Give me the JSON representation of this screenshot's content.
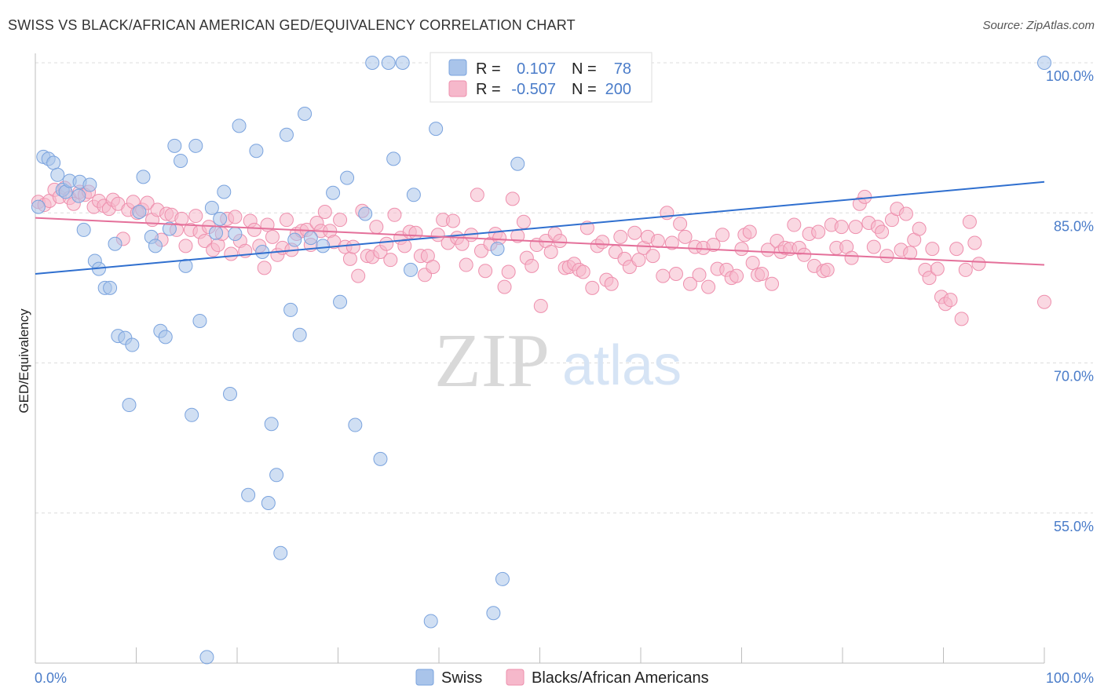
{
  "title": "SWISS VS BLACK/AFRICAN AMERICAN GED/EQUIVALENCY CORRELATION CHART",
  "source": "Source: ZipAtlas.com",
  "watermark": {
    "zip": "ZIP",
    "atlas": "atlas"
  },
  "colors": {
    "swiss": "#a9c4ea",
    "swiss_stroke": "#7aa3de",
    "swiss_line": "#2f6fcf",
    "black": "#f6b8cb",
    "black_stroke": "#ee8fad",
    "black_line": "#e4709a",
    "accent_text": "#4a7cc9",
    "grid": "#dcdcdc"
  },
  "legend_box": {
    "rows": [
      {
        "r_label": "R =",
        "r_value": "0.107",
        "n_label": "N =",
        "n_value": "78"
      },
      {
        "r_label": "R =",
        "r_value": "-0.507",
        "n_label": "N =",
        "n_value": "200"
      }
    ]
  },
  "bottom_legend": [
    "Swiss",
    "Blacks/African Americans"
  ],
  "chart_data": {
    "type": "scatter",
    "title": "SWISS VS BLACK/AFRICAN AMERICAN GED/EQUIVALENCY CORRELATION CHART",
    "xlabel": "",
    "ylabel": "GED/Equivalency",
    "xlim": [
      0,
      100
    ],
    "ylim": [
      40,
      100
    ],
    "x_tick_labels": [
      "0.0%",
      "100.0%"
    ],
    "y_ticks": [
      55,
      70,
      85,
      100
    ],
    "y_tick_labels": [
      "55.0%",
      "70.0%",
      "85.0%",
      "100.0%"
    ],
    "grid": true,
    "legend_position": "top-center",
    "series": [
      {
        "name": "Swiss",
        "r": 0.107,
        "n": 78,
        "trend": [
          [
            0,
            78.9
          ],
          [
            100,
            88.1
          ]
        ],
        "points": [
          [
            0.3,
            85.6
          ],
          [
            0.8,
            90.6
          ],
          [
            1.3,
            90.4
          ],
          [
            1.8,
            90.0
          ],
          [
            2.2,
            88.8
          ],
          [
            2.7,
            87.3
          ],
          [
            3.0,
            87.1
          ],
          [
            3.4,
            88.2
          ],
          [
            4.3,
            86.7
          ],
          [
            4.4,
            88.1
          ],
          [
            5.4,
            87.8
          ],
          [
            4.8,
            83.3
          ],
          [
            5.9,
            80.2
          ],
          [
            6.3,
            79.4
          ],
          [
            6.9,
            77.5
          ],
          [
            7.4,
            77.5
          ],
          [
            7.9,
            81.9
          ],
          [
            8.2,
            72.7
          ],
          [
            8.9,
            72.5
          ],
          [
            9.6,
            71.8
          ],
          [
            9.3,
            65.8
          ],
          [
            10.3,
            85.1
          ],
          [
            10.7,
            88.6
          ],
          [
            11.5,
            82.6
          ],
          [
            11.9,
            81.7
          ],
          [
            12.4,
            73.2
          ],
          [
            12.9,
            72.6
          ],
          [
            13.3,
            83.4
          ],
          [
            13.8,
            91.7
          ],
          [
            14.4,
            90.2
          ],
          [
            14.9,
            79.7
          ],
          [
            15.5,
            64.8
          ],
          [
            15.9,
            91.7
          ],
          [
            16.3,
            74.2
          ],
          [
            17.0,
            40.6
          ],
          [
            17.5,
            85.5
          ],
          [
            17.9,
            83.0
          ],
          [
            18.3,
            84.4
          ],
          [
            18.7,
            87.1
          ],
          [
            19.3,
            66.9
          ],
          [
            19.8,
            82.9
          ],
          [
            20.2,
            93.7
          ],
          [
            21.1,
            56.8
          ],
          [
            21.9,
            91.2
          ],
          [
            22.5,
            81.1
          ],
          [
            23.1,
            56.0
          ],
          [
            23.4,
            63.9
          ],
          [
            23.9,
            58.8
          ],
          [
            24.3,
            51.0
          ],
          [
            24.9,
            92.8
          ],
          [
            25.3,
            75.3
          ],
          [
            25.7,
            82.3
          ],
          [
            26.2,
            72.8
          ],
          [
            26.7,
            94.9
          ],
          [
            27.3,
            82.5
          ],
          [
            28.5,
            81.7
          ],
          [
            29.5,
            87.0
          ],
          [
            30.2,
            76.1
          ],
          [
            30.9,
            88.5
          ],
          [
            31.7,
            63.8
          ],
          [
            32.7,
            84.9
          ],
          [
            33.4,
            100
          ],
          [
            34.2,
            60.4
          ],
          [
            35.0,
            100
          ],
          [
            35.5,
            90.4
          ],
          [
            36.4,
            100
          ],
          [
            37.2,
            79.3
          ],
          [
            37.5,
            86.8
          ],
          [
            39.2,
            44.2
          ],
          [
            39.7,
            93.4
          ],
          [
            41.2,
            100
          ],
          [
            41.8,
            100
          ],
          [
            45.4,
            45.0
          ],
          [
            45.8,
            81.4
          ],
          [
            46.3,
            48.4
          ],
          [
            47.0,
            100
          ],
          [
            47.8,
            89.9
          ],
          [
            100,
            100
          ]
        ]
      },
      {
        "name": "Blacks/African Americans",
        "r": -0.507,
        "n": 200,
        "trend": [
          [
            0,
            84.5
          ],
          [
            100,
            79.8
          ]
        ],
        "points": [
          [
            0.3,
            86.1
          ],
          [
            0.9,
            85.8
          ],
          [
            1.4,
            86.2
          ],
          [
            1.9,
            87.3
          ],
          [
            2.4,
            86.6
          ],
          [
            2.9,
            87.5
          ],
          [
            3.4,
            86.5
          ],
          [
            3.8,
            85.9
          ],
          [
            4.4,
            87.1
          ],
          [
            4.9,
            86.8
          ],
          [
            5.3,
            87.1
          ],
          [
            5.8,
            85.6
          ],
          [
            6.3,
            86.2
          ],
          [
            6.8,
            85.7
          ],
          [
            7.3,
            85.4
          ],
          [
            7.7,
            86.3
          ],
          [
            8.2,
            85.9
          ],
          [
            8.7,
            82.4
          ],
          [
            9.2,
            85.3
          ],
          [
            9.7,
            86.1
          ],
          [
            10.1,
            85.0
          ],
          [
            10.6,
            85.3
          ],
          [
            11.1,
            86.0
          ],
          [
            11.6,
            84.3
          ],
          [
            12.1,
            85.3
          ],
          [
            12.5,
            82.3
          ],
          [
            13.0,
            84.9
          ],
          [
            13.5,
            84.8
          ],
          [
            14.0,
            83.3
          ],
          [
            14.5,
            84.4
          ],
          [
            14.9,
            81.7
          ],
          [
            15.4,
            83.3
          ],
          [
            15.9,
            84.7
          ],
          [
            16.3,
            83.1
          ],
          [
            16.8,
            82.2
          ],
          [
            17.2,
            83.6
          ],
          [
            17.6,
            81.3
          ],
          [
            18.1,
            81.8
          ],
          [
            18.5,
            82.9
          ],
          [
            19.0,
            84.4
          ],
          [
            19.4,
            80.9
          ],
          [
            19.8,
            84.6
          ],
          [
            20.3,
            82.2
          ],
          [
            20.8,
            81.2
          ],
          [
            21.3,
            84.2
          ],
          [
            21.7,
            83.3
          ],
          [
            22.2,
            81.7
          ],
          [
            22.7,
            79.5
          ],
          [
            23.0,
            83.8
          ],
          [
            23.5,
            82.6
          ],
          [
            24.0,
            80.8
          ],
          [
            24.5,
            81.5
          ],
          [
            24.9,
            84.3
          ],
          [
            25.4,
            81.3
          ],
          [
            25.9,
            82.9
          ],
          [
            26.4,
            83.2
          ],
          [
            26.9,
            83.3
          ],
          [
            27.3,
            81.8
          ],
          [
            27.9,
            84.0
          ],
          [
            28.3,
            83.2
          ],
          [
            28.7,
            85.1
          ],
          [
            29.2,
            83.2
          ],
          [
            29.6,
            82.1
          ],
          [
            30.2,
            84.3
          ],
          [
            30.7,
            81.6
          ],
          [
            31.2,
            80.4
          ],
          [
            31.5,
            81.6
          ],
          [
            32.0,
            78.7
          ],
          [
            32.4,
            85.2
          ],
          [
            32.9,
            80.7
          ],
          [
            33.4,
            80.6
          ],
          [
            33.8,
            83.6
          ],
          [
            34.2,
            81.1
          ],
          [
            34.8,
            81.9
          ],
          [
            35.2,
            80.3
          ],
          [
            35.6,
            84.8
          ],
          [
            36.2,
            82.5
          ],
          [
            36.6,
            81.7
          ],
          [
            37.1,
            83.1
          ],
          [
            37.7,
            83.0
          ],
          [
            38.2,
            80.7
          ],
          [
            38.6,
            78.8
          ],
          [
            38.9,
            80.7
          ],
          [
            39.4,
            79.6
          ],
          [
            39.9,
            82.8
          ],
          [
            40.4,
            84.3
          ],
          [
            40.9,
            82.0
          ],
          [
            41.4,
            84.2
          ],
          [
            41.8,
            82.5
          ],
          [
            42.3,
            81.9
          ],
          [
            42.7,
            79.8
          ],
          [
            43.2,
            82.8
          ],
          [
            43.8,
            86.8
          ],
          [
            44.2,
            81.2
          ],
          [
            44.6,
            79.2
          ],
          [
            45.1,
            81.9
          ],
          [
            45.6,
            82.9
          ],
          [
            46.0,
            82.5
          ],
          [
            46.5,
            77.6
          ],
          [
            46.9,
            79.1
          ],
          [
            47.3,
            86.4
          ],
          [
            47.8,
            82.7
          ],
          [
            48.4,
            84.1
          ],
          [
            48.7,
            80.5
          ],
          [
            49.2,
            79.7
          ],
          [
            49.7,
            81.8
          ],
          [
            50.1,
            75.7
          ],
          [
            50.6,
            82.2
          ],
          [
            51.1,
            81.1
          ],
          [
            51.5,
            82.9
          ],
          [
            52.0,
            82.2
          ],
          [
            52.5,
            79.5
          ],
          [
            52.9,
            79.6
          ],
          [
            53.4,
            79.9
          ],
          [
            53.9,
            79.3
          ],
          [
            54.3,
            79.1
          ],
          [
            54.7,
            83.5
          ],
          [
            55.2,
            77.5
          ],
          [
            55.7,
            81.7
          ],
          [
            56.2,
            82.1
          ],
          [
            56.6,
            78.3
          ],
          [
            57.1,
            77.9
          ],
          [
            57.5,
            81.1
          ],
          [
            58.0,
            82.6
          ],
          [
            58.4,
            80.4
          ],
          [
            58.9,
            79.6
          ],
          [
            59.4,
            83.0
          ],
          [
            59.8,
            80.3
          ],
          [
            60.3,
            81.5
          ],
          [
            60.7,
            82.6
          ],
          [
            61.2,
            80.7
          ],
          [
            61.7,
            82.2
          ],
          [
            62.2,
            78.7
          ],
          [
            62.6,
            85.0
          ],
          [
            63.1,
            82.0
          ],
          [
            63.5,
            78.9
          ],
          [
            63.9,
            83.9
          ],
          [
            64.4,
            82.6
          ],
          [
            64.9,
            77.9
          ],
          [
            65.4,
            81.6
          ],
          [
            65.8,
            78.8
          ],
          [
            66.2,
            81.5
          ],
          [
            66.7,
            77.6
          ],
          [
            67.2,
            81.8
          ],
          [
            67.6,
            79.4
          ],
          [
            68.1,
            82.8
          ],
          [
            68.5,
            79.3
          ],
          [
            69.0,
            78.5
          ],
          [
            69.5,
            78.7
          ],
          [
            70.0,
            81.4
          ],
          [
            70.3,
            82.8
          ],
          [
            70.8,
            83.1
          ],
          [
            71.1,
            80.0
          ],
          [
            71.6,
            78.8
          ],
          [
            72.0,
            78.9
          ],
          [
            72.6,
            81.3
          ],
          [
            73.0,
            77.9
          ],
          [
            73.5,
            82.2
          ],
          [
            73.9,
            81.1
          ],
          [
            74.3,
            81.5
          ],
          [
            74.8,
            81.4
          ],
          [
            75.2,
            83.8
          ],
          [
            75.7,
            81.5
          ],
          [
            76.2,
            80.8
          ],
          [
            76.7,
            82.9
          ],
          [
            77.2,
            79.7
          ],
          [
            77.6,
            83.1
          ],
          [
            78.1,
            79.2
          ],
          [
            78.5,
            79.3
          ],
          [
            78.9,
            83.8
          ],
          [
            79.4,
            81.5
          ],
          [
            79.9,
            83.6
          ],
          [
            80.4,
            81.6
          ],
          [
            80.9,
            80.5
          ],
          [
            81.3,
            83.6
          ],
          [
            81.7,
            85.9
          ],
          [
            82.2,
            86.6
          ],
          [
            82.6,
            84.0
          ],
          [
            83.1,
            81.6
          ],
          [
            83.5,
            83.6
          ],
          [
            83.9,
            83.1
          ],
          [
            84.4,
            80.7
          ],
          [
            84.9,
            84.3
          ],
          [
            85.4,
            85.4
          ],
          [
            85.8,
            81.3
          ],
          [
            86.3,
            84.9
          ],
          [
            86.7,
            81.0
          ],
          [
            87.1,
            82.3
          ],
          [
            87.6,
            83.4
          ],
          [
            88.2,
            79.3
          ],
          [
            88.6,
            78.5
          ],
          [
            88.9,
            81.4
          ],
          [
            89.4,
            79.4
          ],
          [
            89.8,
            76.6
          ],
          [
            90.2,
            75.9
          ],
          [
            90.7,
            76.3
          ],
          [
            91.3,
            81.4
          ],
          [
            91.8,
            74.4
          ],
          [
            92.2,
            79.3
          ],
          [
            92.6,
            84.1
          ],
          [
            93.1,
            82.0
          ],
          [
            93.5,
            79.9
          ],
          [
            100,
            76.1
          ]
        ]
      }
    ]
  }
}
